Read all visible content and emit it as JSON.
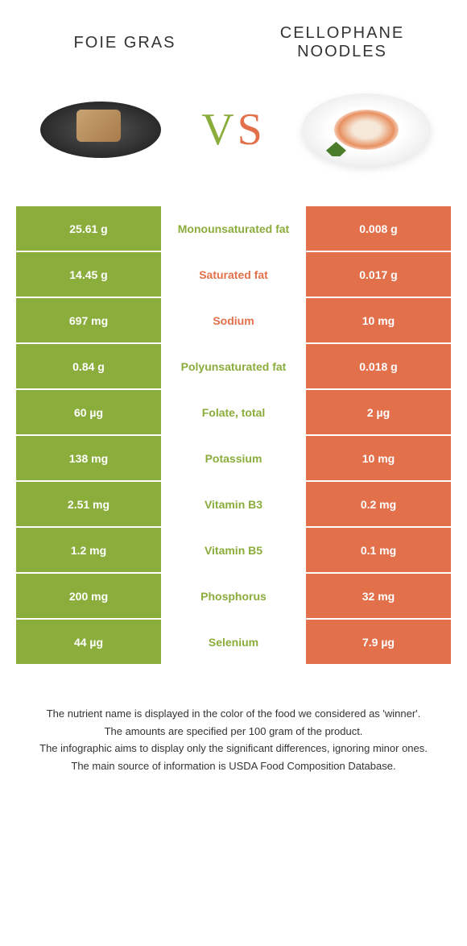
{
  "header": {
    "left_title": "Foie gras",
    "right_title": "Cellophane Noodles",
    "vs_v": "V",
    "vs_s": "S"
  },
  "colors": {
    "green": "#8aad3c",
    "orange": "#e2704b"
  },
  "rows": [
    {
      "left": "25.61 g",
      "label": "Monounsaturated fat",
      "right": "0.008 g",
      "winner": "green"
    },
    {
      "left": "14.45 g",
      "label": "Saturated fat",
      "right": "0.017 g",
      "winner": "orange"
    },
    {
      "left": "697 mg",
      "label": "Sodium",
      "right": "10 mg",
      "winner": "orange"
    },
    {
      "left": "0.84 g",
      "label": "Polyunsaturated fat",
      "right": "0.018 g",
      "winner": "green"
    },
    {
      "left": "60 µg",
      "label": "Folate, total",
      "right": "2 µg",
      "winner": "green"
    },
    {
      "left": "138 mg",
      "label": "Potassium",
      "right": "10 mg",
      "winner": "green"
    },
    {
      "left": "2.51 mg",
      "label": "Vitamin B3",
      "right": "0.2 mg",
      "winner": "green"
    },
    {
      "left": "1.2 mg",
      "label": "Vitamin B5",
      "right": "0.1 mg",
      "winner": "green"
    },
    {
      "left": "200 mg",
      "label": "Phosphorus",
      "right": "32 mg",
      "winner": "green"
    },
    {
      "left": "44 µg",
      "label": "Selenium",
      "right": "7.9 µg",
      "winner": "green"
    }
  ],
  "footer": {
    "line1": "The nutrient name is displayed in the color of the food we considered as 'winner'.",
    "line2": "The amounts are specified per 100 gram of the product.",
    "line3": "The infographic aims to display only the significant differences, ignoring minor ones.",
    "line4": "The main source of information is USDA Food Composition Database."
  }
}
